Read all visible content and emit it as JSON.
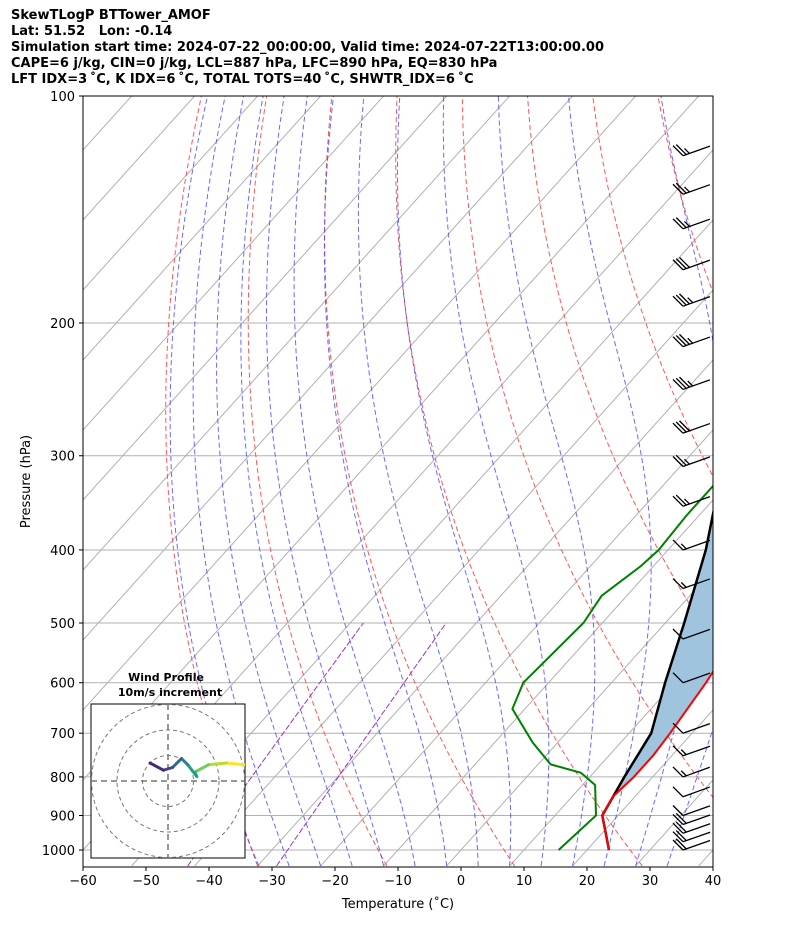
{
  "header": {
    "line1": "SkewTLogP BTTower_AMOF",
    "line2": "Lat: 51.52   Lon: -0.14",
    "line3": "Simulation start time: 2024-07-22_00:00:00, Valid time: 2024-07-22T13:00:00.00",
    "line4": "CAPE=6 j/kg, CIN=0 j/kg, LCL=887 hPa, LFC=890 hPa, EQ=830 hPa",
    "line5": "LFT IDX=3$^\\circ$C, K IDX=6$^\\circ$C, TOTAL TOTS=40$^\\circ$C, SHWTR_IDX=6$^\\circ$C"
  },
  "header_display": {
    "line5": "LFT IDX=3 ˚C, K IDX=6 ˚C, TOTAL TOTS=40 ˚C, SHWTR_IDX=6 ˚C"
  },
  "chart_data": {
    "type": "line",
    "chart_kind": "skew-T log-P",
    "xlabel": "Temperature (˚C)",
    "ylabel": "Pressure (hPa)",
    "xlim": [
      -60,
      40
    ],
    "ylim": [
      1050,
      100
    ],
    "x_ticks": [
      -60,
      -50,
      -40,
      -30,
      -20,
      -10,
      0,
      10,
      20,
      30,
      40
    ],
    "x_tick_labels": [
      "−60",
      "−50",
      "−40",
      "−30",
      "−20",
      "−10",
      "0",
      "10",
      "20",
      "30",
      "40"
    ],
    "y_ticks": [
      100,
      200,
      300,
      400,
      500,
      600,
      700,
      800,
      900,
      1000
    ],
    "y_scale": "log",
    "grid": true,
    "cape_shading_color": "#a0c4de",
    "series": [
      {
        "key": "temperature",
        "color": "#ff0000",
        "points": [
          [
            23.5,
            1000
          ],
          [
            17.5,
            900
          ],
          [
            16.5,
            850
          ],
          [
            17,
            800
          ],
          [
            17,
            750
          ],
          [
            16.5,
            700
          ],
          [
            15,
            600
          ],
          [
            12.5,
            500
          ],
          [
            8.5,
            450
          ],
          [
            4,
            400
          ],
          [
            0.5,
            350
          ],
          [
            -2,
            300
          ],
          [
            -3.5,
            270
          ],
          [
            -5,
            240
          ],
          [
            -6,
            230
          ],
          [
            -4,
            210
          ],
          [
            -2,
            200
          ],
          [
            0,
            185
          ],
          [
            2.5,
            170
          ],
          [
            5,
            150
          ],
          [
            8,
            130
          ],
          [
            10,
            115
          ],
          [
            12,
            100
          ]
        ]
      },
      {
        "key": "dewpoint",
        "color": "#008000",
        "points": [
          [
            15.5,
            1000
          ],
          [
            16.5,
            900
          ],
          [
            12,
            820
          ],
          [
            8,
            790
          ],
          [
            2,
            770
          ],
          [
            -4,
            720
          ],
          [
            -12,
            650
          ],
          [
            -14,
            600
          ],
          [
            -13,
            500
          ],
          [
            -14,
            460
          ],
          [
            -12,
            420
          ],
          [
            -11.5,
            400
          ],
          [
            -12,
            360
          ],
          [
            -12,
            300
          ],
          [
            -12.5,
            270
          ],
          [
            -11,
            260
          ],
          [
            -9,
            250
          ],
          [
            -10,
            235
          ],
          [
            -12,
            220
          ],
          [
            -14.5,
            210
          ],
          [
            -14.5,
            200
          ],
          [
            -14,
            190
          ],
          [
            -14.5,
            180
          ],
          [
            -17,
            170
          ],
          [
            -19,
            165
          ],
          [
            -22,
            160
          ],
          [
            -19,
            150
          ],
          [
            -16,
            140
          ],
          [
            -14,
            130
          ],
          [
            -11,
            115
          ],
          [
            -10,
            100
          ]
        ]
      },
      {
        "key": "parcel",
        "color": "#000000",
        "points": [
          [
            23.5,
            1000
          ],
          [
            17.5,
            900
          ],
          [
            15.5,
            800
          ],
          [
            13.5,
            700
          ],
          [
            8.5,
            600
          ],
          [
            3,
            500
          ],
          [
            -4,
            400
          ],
          [
            -11,
            330
          ],
          [
            -15,
            290
          ],
          [
            -22,
            240
          ],
          [
            -28,
            200
          ],
          [
            -35,
            160
          ],
          [
            -42,
            130
          ],
          [
            -49,
            110
          ],
          [
            -52,
            100
          ]
        ]
      }
    ],
    "dry_adiabat_color": "#ff5555",
    "moist_adiabat_color": "#4444ff",
    "mixing_ratio_color": "#9933cc",
    "wind_barbs": [
      {
        "p": 1000,
        "dir": 250,
        "speed": 20
      },
      {
        "p": 975,
        "dir": 250,
        "speed": 20
      },
      {
        "p": 950,
        "dir": 250,
        "speed": 20
      },
      {
        "p": 925,
        "dir": 250,
        "speed": 20
      },
      {
        "p": 900,
        "dir": 255,
        "speed": 10
      },
      {
        "p": 850,
        "dir": 260,
        "speed": 10
      },
      {
        "p": 800,
        "dir": 260,
        "speed": 15
      },
      {
        "p": 750,
        "dir": 255,
        "speed": 15
      },
      {
        "p": 700,
        "dir": 255,
        "speed": 10
      },
      {
        "p": 600,
        "dir": 255,
        "speed": 10
      },
      {
        "p": 525,
        "dir": 255,
        "speed": 10
      },
      {
        "p": 450,
        "dir": 255,
        "speed": 15
      },
      {
        "p": 400,
        "dir": 255,
        "speed": 15
      },
      {
        "p": 350,
        "dir": 255,
        "speed": 25
      },
      {
        "p": 310,
        "dir": 255,
        "speed": 25
      },
      {
        "p": 280,
        "dir": 255,
        "speed": 30
      },
      {
        "p": 245,
        "dir": 255,
        "speed": 35
      },
      {
        "p": 215,
        "dir": 255,
        "speed": 35
      },
      {
        "p": 190,
        "dir": 255,
        "speed": 35
      },
      {
        "p": 170,
        "dir": 255,
        "speed": 30
      },
      {
        "p": 150,
        "dir": 255,
        "speed": 25
      },
      {
        "p": 135,
        "dir": 255,
        "speed": 25
      },
      {
        "p": 120,
        "dir": 255,
        "speed": 25
      }
    ],
    "inset": {
      "title": "Wind Profile",
      "subtitle": "10m/s increment",
      "rings": 3,
      "hodograph": [
        [
          0.86,
          -0.18
        ],
        [
          0.65,
          -0.2
        ],
        [
          0.45,
          -0.18
        ],
        [
          0.3,
          -0.1
        ],
        [
          0.32,
          -0.05
        ],
        [
          0.22,
          -0.18
        ],
        [
          0.15,
          -0.25
        ],
        [
          0.05,
          -0.15
        ],
        [
          -0.05,
          -0.12
        ],
        [
          -0.2,
          -0.2
        ]
      ]
    }
  }
}
